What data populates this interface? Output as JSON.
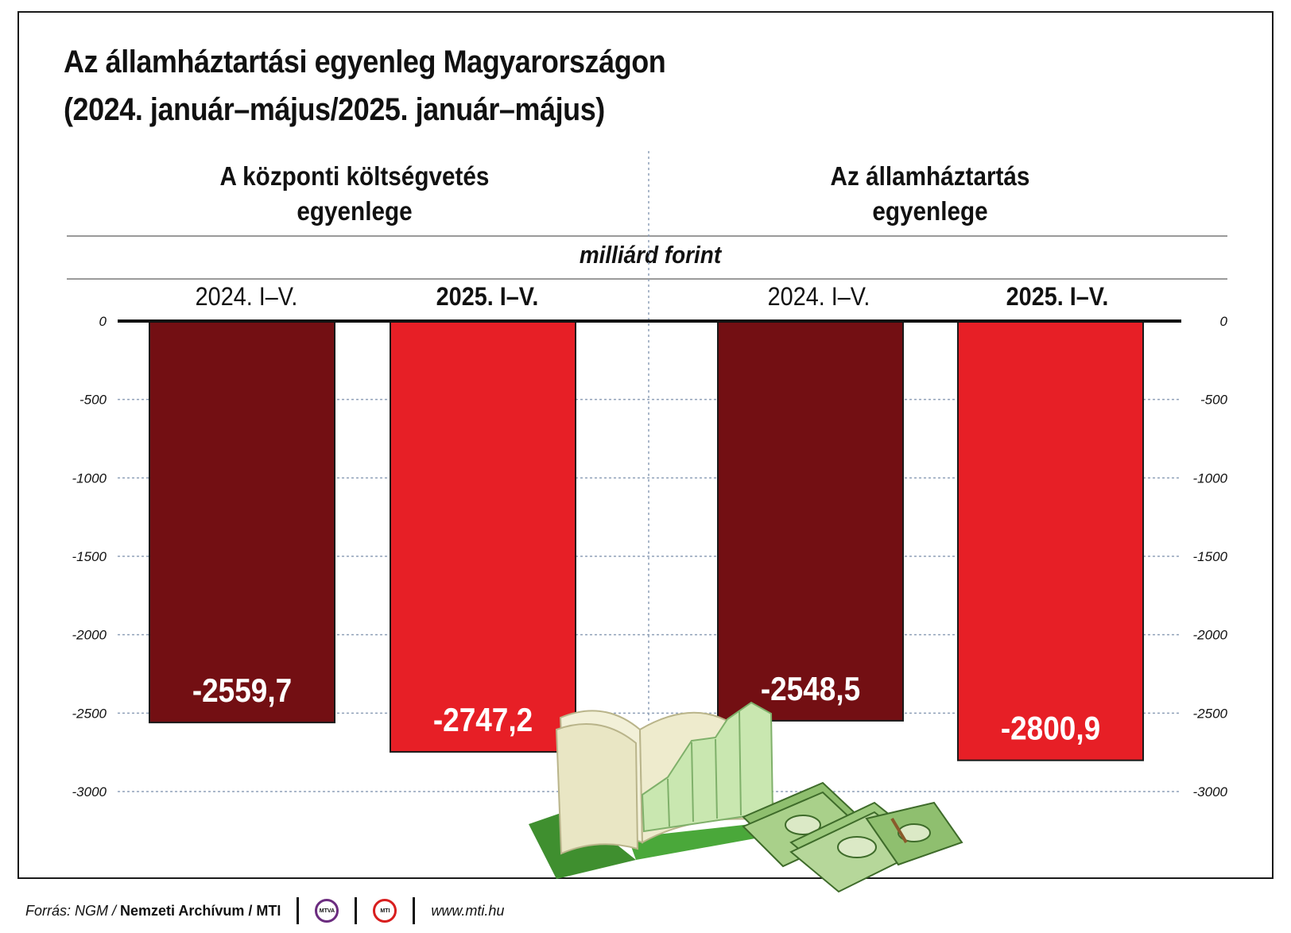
{
  "title": {
    "line1": "Az államháztartási egyenleg Magyarországon",
    "line2": "(2024. január–május/2025. január–május)"
  },
  "groups": [
    {
      "title_line1": "A központi költségvetés",
      "title_line2": "egyenlege"
    },
    {
      "title_line1": "Az államháztartás",
      "title_line2": "egyenlege"
    }
  ],
  "unit": "milliárd forint",
  "periods": [
    "2024. I–V.",
    "2025. I–V.",
    "2024. I–V.",
    "2025. I–V."
  ],
  "footer": {
    "source_prefix": "Forrás: NGM / ",
    "source_bold": "Nemzeti Archívum / MTI",
    "logo1": "MTVA",
    "logo2": "MTI",
    "url": "www.mti.hu"
  },
  "colors": {
    "bar_2024": "#730f13",
    "bar_2025": "#e71f26",
    "grid": "#8fa0b8"
  },
  "chart_data": {
    "type": "bar",
    "categories": [
      "2024. I–V.",
      "2025. I–V.",
      "2024. I–V.",
      "2025. I–V."
    ],
    "groups": [
      "A központi költségvetés egyenlege",
      "Az államháztartás egyenlege"
    ],
    "values": [
      -2559.7,
      -2747.2,
      -2548.5,
      -2800.9
    ],
    "value_labels": [
      "-2559,7",
      "-2747,2",
      "-2548,5",
      "-2800,9"
    ],
    "ylim": [
      -3000,
      0
    ],
    "yticks": [
      0,
      -500,
      -1000,
      -1500,
      -2000,
      -2500,
      -3000
    ],
    "ytick_labels": [
      "0",
      "-500",
      "-1000",
      "-1500",
      "-2000",
      "-2500",
      "-3000"
    ],
    "grid": true,
    "axis_sides": "both"
  }
}
